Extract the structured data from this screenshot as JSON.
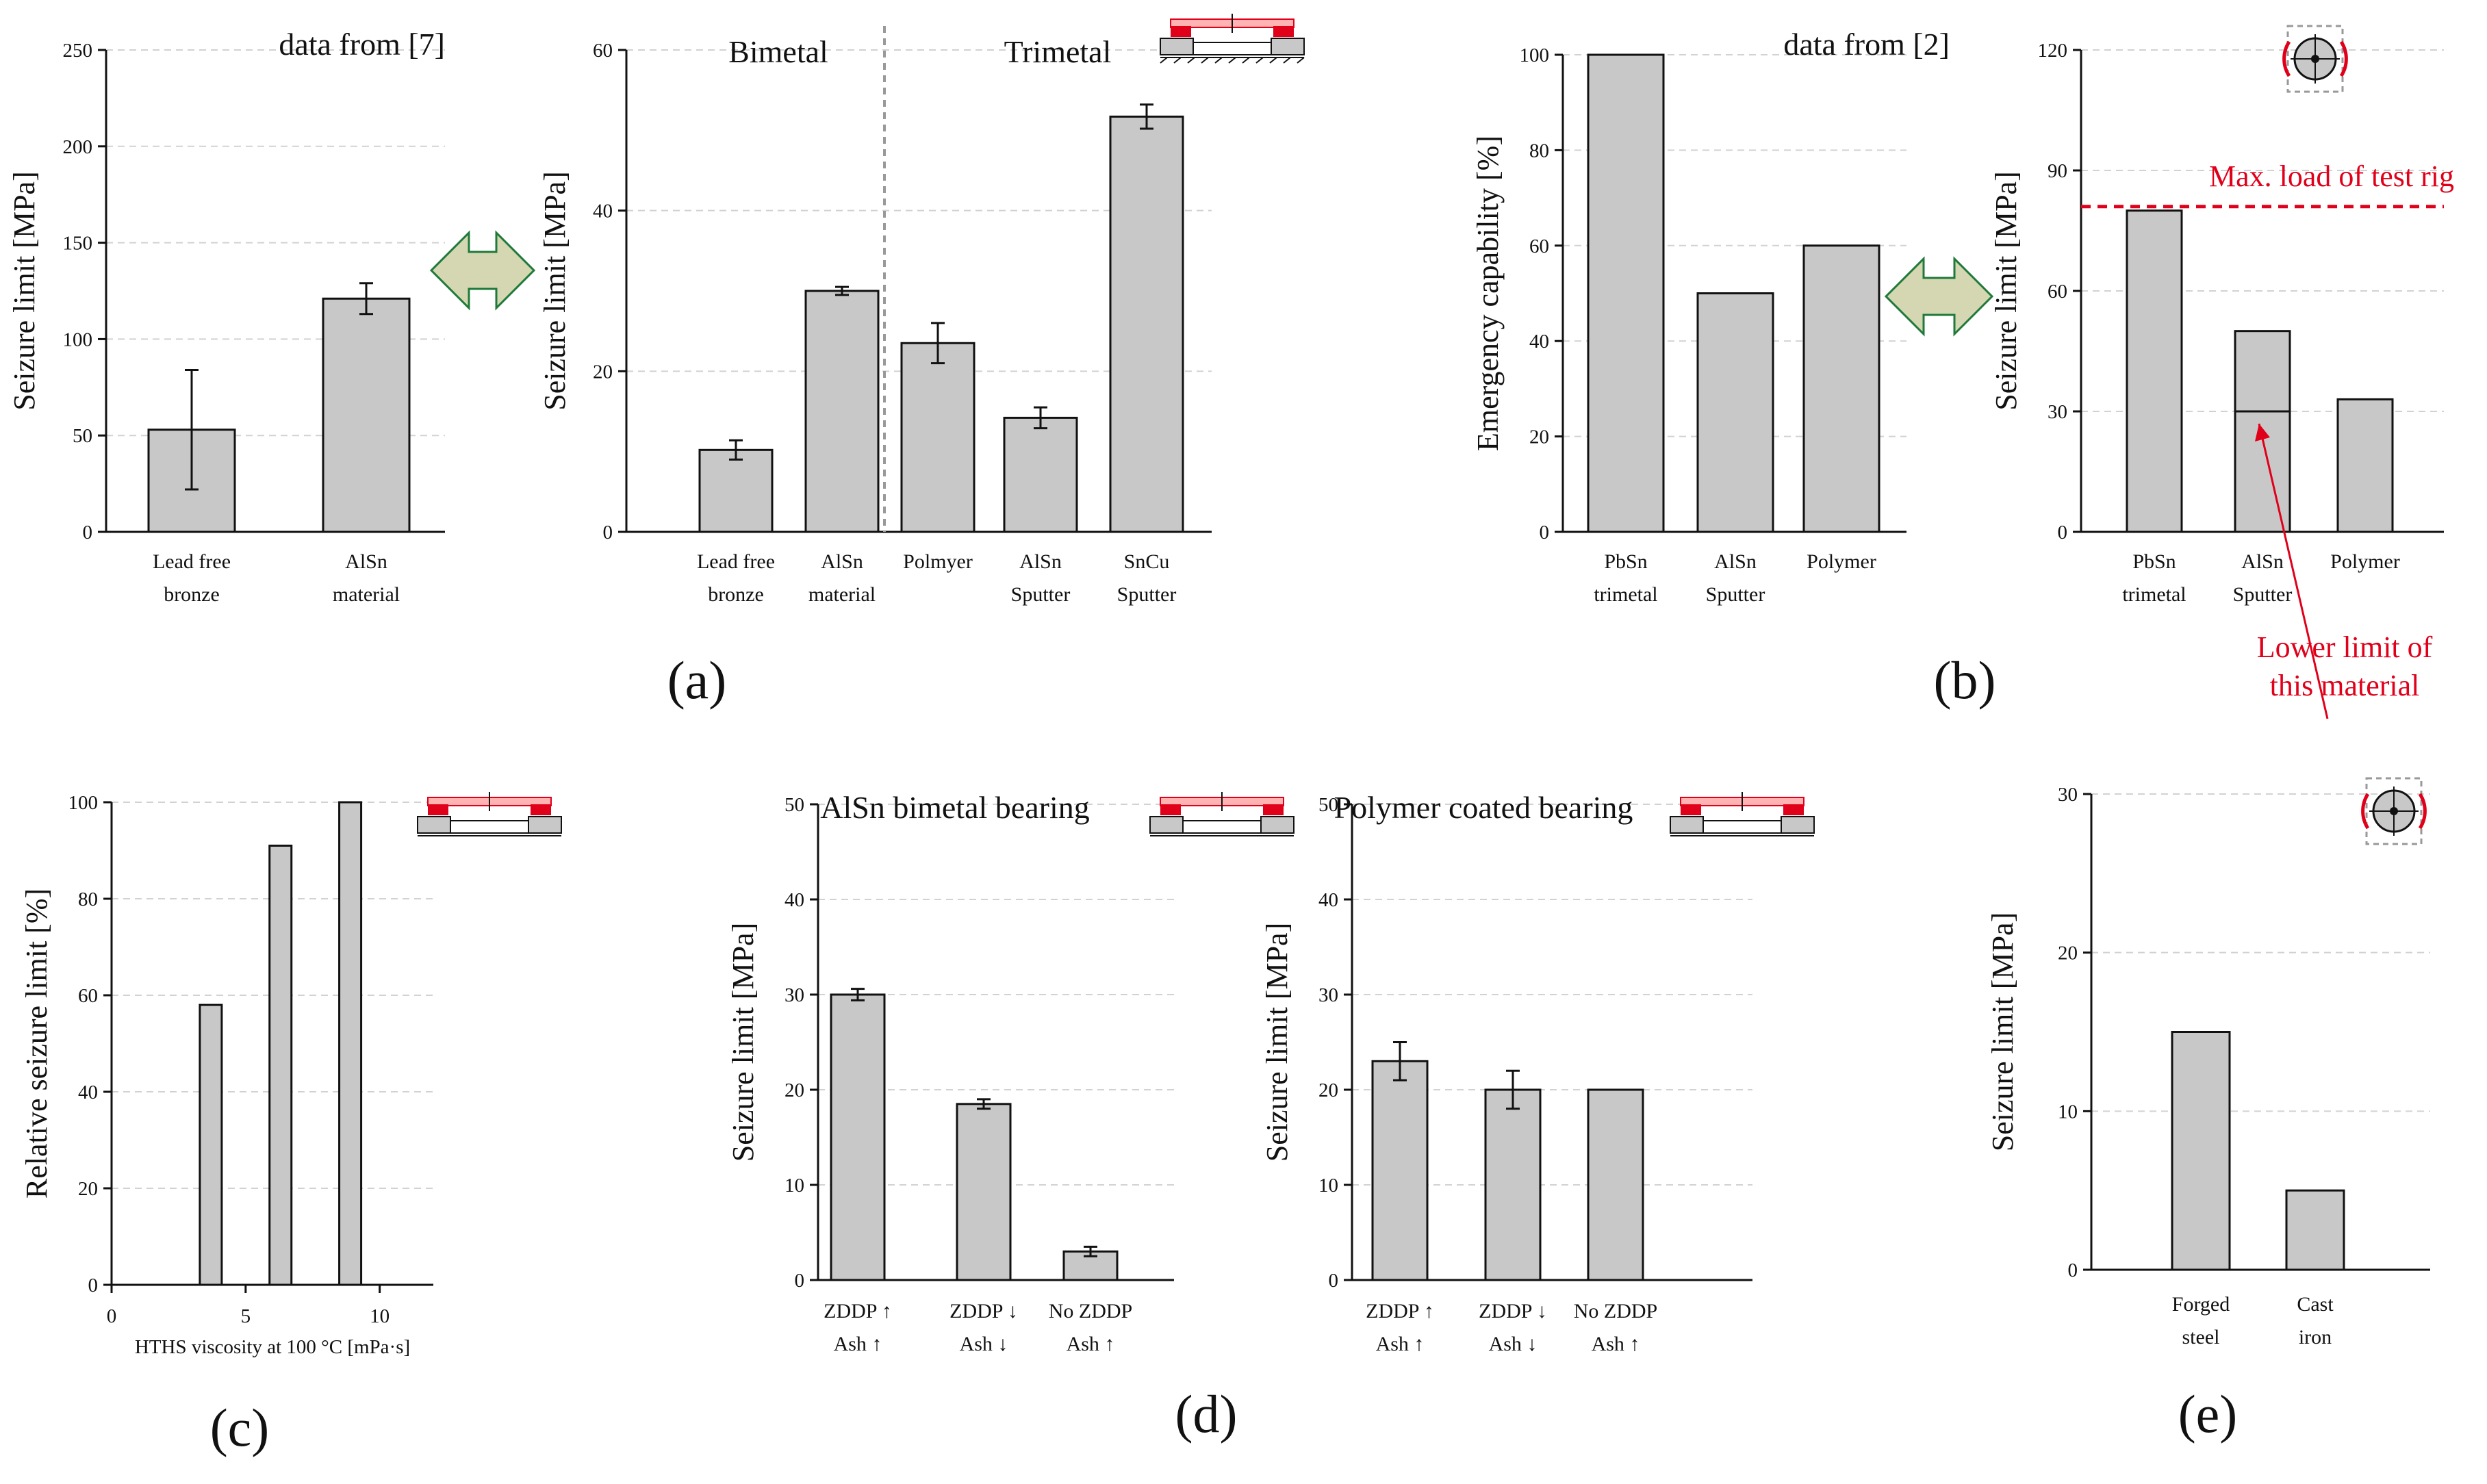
{
  "colors": {
    "bar": "#c8c8c8",
    "highlight": "#e0001a",
    "arrow": "#d4d7b1"
  },
  "arrow_icon": "double-headed-arrow",
  "bearing_icon_flat": "bearing-cross-section-icon",
  "bearing_icon_round": "bearing-rig-icon",
  "chart_data": [
    {
      "type": "bar",
      "panel": "a",
      "title": "data from [7]",
      "categories": [
        "Lead free\nbronze",
        "AlSn\nmaterial"
      ],
      "values": [
        53,
        121
      ],
      "errors": [
        31,
        8
      ],
      "ylabel": "Seizure limit [MPa]",
      "ylim": [
        0,
        250
      ],
      "yticks": [
        0,
        50,
        100,
        150,
        200,
        250
      ],
      "grid": true
    },
    {
      "type": "bar",
      "panel": "a",
      "groups": [
        "Bimetal",
        "Trimetal"
      ],
      "categories": [
        "Lead free\nbronze",
        "AlSn\nmaterial",
        "Polmyer",
        "AlSn\nSputter",
        "SnCu\nSputter"
      ],
      "values": [
        10.2,
        30,
        23.5,
        14.2,
        51.7
      ],
      "errors": [
        1.2,
        0.5,
        2.5,
        1.3,
        1.5
      ],
      "ylabel": "Seizure limit [MPa]",
      "ylim": [
        0,
        60
      ],
      "yticks": [
        0,
        20,
        40,
        60
      ],
      "grid": true
    },
    {
      "type": "bar",
      "panel": "b",
      "title": "data from [2]",
      "categories": [
        "PbSn\ntrimetal",
        "AlSn\nSputter",
        "Polymer"
      ],
      "values": [
        100,
        50,
        60
      ],
      "ylabel": "Emergency capability [%]",
      "ylim": [
        0,
        100
      ],
      "yticks": [
        0,
        20,
        40,
        60,
        80,
        100
      ],
      "grid": true
    },
    {
      "type": "bar",
      "panel": "b",
      "categories": [
        "PbSn\ntrimetal",
        "AlSn\nSputter",
        "Polymer"
      ],
      "values": [
        80,
        50,
        33
      ],
      "ylabel": "Seizure limit [MPa]",
      "ylim": [
        0,
        120
      ],
      "yticks": [
        0,
        30,
        60,
        90,
        120
      ],
      "grid": true,
      "reference_line": {
        "value": 81,
        "label": "Max. load of test rig"
      },
      "inner_line": {
        "category": "AlSn\nSputter",
        "value": 30
      },
      "annotation": "Lower limit of\nthis material"
    },
    {
      "type": "bar",
      "panel": "c",
      "x": [
        3.7,
        6.3,
        8.9
      ],
      "values": [
        58,
        91,
        100
      ],
      "xlabel": "HTHS viscosity at 100 °C [mPa·s]",
      "ylabel": "Relative seizure limit [%]",
      "xlim": [
        0,
        12
      ],
      "xticks": [
        0,
        5,
        10
      ],
      "ylim": [
        0,
        100
      ],
      "yticks": [
        0,
        20,
        40,
        60,
        80,
        100
      ],
      "grid": true
    },
    {
      "type": "bar",
      "panel": "d",
      "title": "AlSn bimetal bearing",
      "categories": [
        "ZDDP ↑\nAsh ↑",
        "ZDDP ↓\nAsh ↓",
        "No ZDDP\nAsh ↑"
      ],
      "values": [
        30,
        18.5,
        3
      ],
      "errors": [
        0.6,
        0.5,
        0.5
      ],
      "ylabel": "Seizure limit [MPa]",
      "ylim": [
        0,
        50
      ],
      "yticks": [
        0,
        10,
        20,
        30,
        40,
        50
      ],
      "grid": true
    },
    {
      "type": "bar",
      "panel": "d",
      "title": "Polymer coated bearing",
      "categories": [
        "ZDDP ↑\nAsh ↑",
        "ZDDP ↓\nAsh ↓",
        "No ZDDP\nAsh ↑"
      ],
      "values": [
        23,
        20,
        20
      ],
      "errors": [
        2,
        2,
        0
      ],
      "ylabel": "Seizure limit [MPa]",
      "ylim": [
        0,
        50
      ],
      "yticks": [
        0,
        10,
        20,
        30,
        40,
        50
      ],
      "grid": true
    },
    {
      "type": "bar",
      "panel": "e",
      "categories": [
        "Forged\nsteel",
        "Cast\niron"
      ],
      "values": [
        15,
        5
      ],
      "ylabel": "Seizure limit [MPa]",
      "ylim": [
        0,
        30
      ],
      "yticks": [
        0,
        10,
        20,
        30
      ],
      "grid": true
    }
  ],
  "panel_labels": [
    "(a)",
    "(b)",
    "(c)",
    "(d)",
    "(e)"
  ]
}
